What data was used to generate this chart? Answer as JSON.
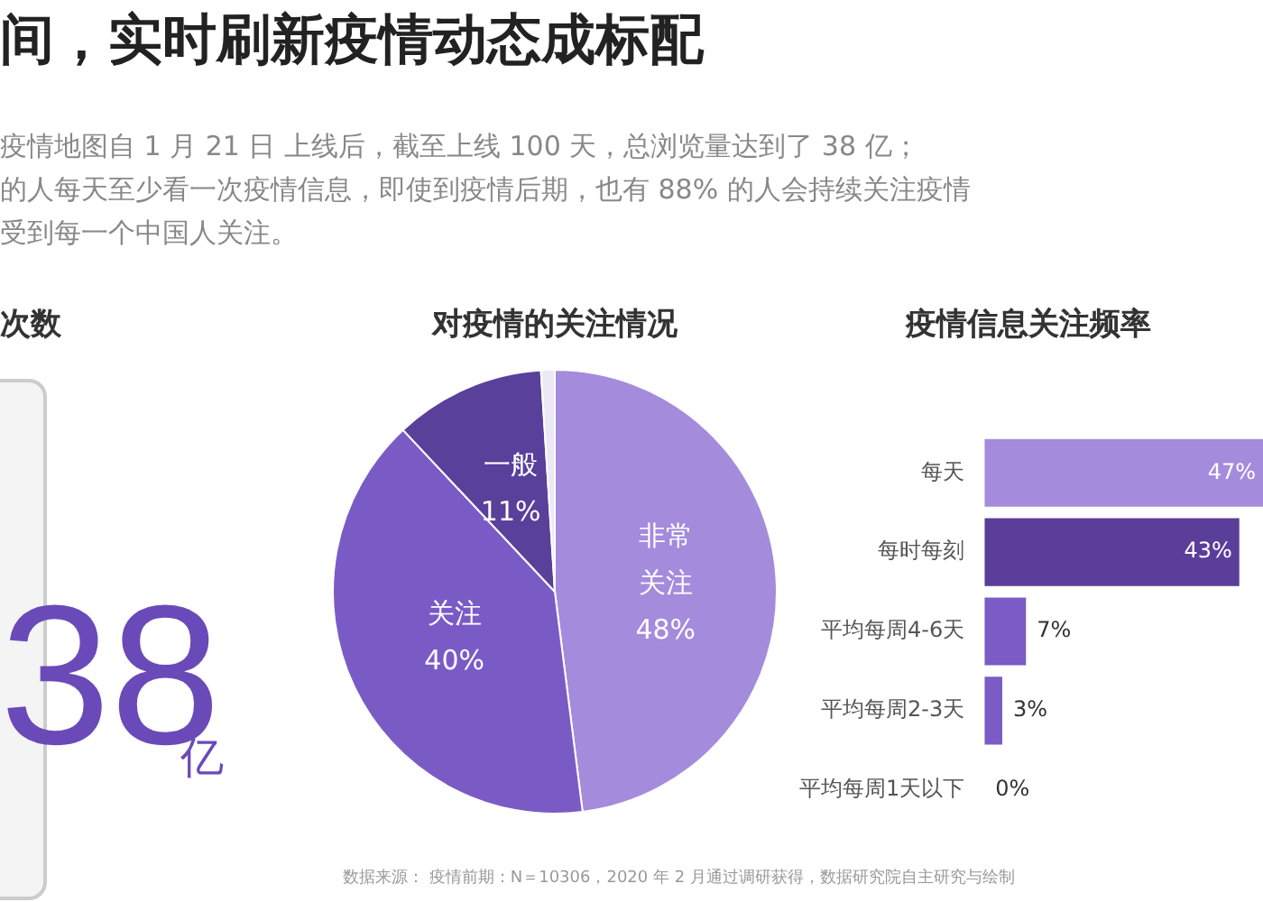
{
  "chart_data": [
    {
      "type": "other",
      "title": "间，实时刷新疫情动态成标配",
      "annotations": [
        "疫情地图自 1 月 21 日 上线后，截至上线 100 天，总浏览量达到了 38 亿；",
        "的人每天至少看一次疫情信息，即使到疫情后期，也有 88% 的人会持续关注疫情",
        "受到每一个中国人关注。",
        "次数",
        "38",
        "亿"
      ]
    },
    {
      "type": "pie",
      "title": "对疫情的关注情况",
      "categories": [
        "非常关注",
        "关注",
        "一般",
        null
      ],
      "values": [
        48,
        40,
        11,
        1
      ],
      "colors": [
        "#a48bdc",
        "#7a5bc6",
        "#59409a",
        "#ece8f4"
      ],
      "value_labels": [
        "48%",
        "40%",
        "11%",
        null
      ]
    },
    {
      "type": "bar",
      "orientation": "horizontal",
      "title": "疫情信息关注频率",
      "categories": [
        "每天",
        "每时每刻",
        "平均每周4-6天",
        "平均每周2-3天",
        "平均每周1天以下"
      ],
      "values": [
        47,
        43,
        7,
        3,
        0
      ],
      "colors": [
        "#a48bdc",
        "#5b3d9a",
        "#7b5bc6",
        "#7b5bc6",
        "#7b5bc6"
      ],
      "value_labels": [
        "47%",
        "43%",
        "7%",
        "3%",
        "0%"
      ],
      "annotations": [
        "数据来源：   疫情前期：N＝10306，2020 年 2 月通过调研获得，数据研究院自主研究与绘制"
      ]
    }
  ]
}
